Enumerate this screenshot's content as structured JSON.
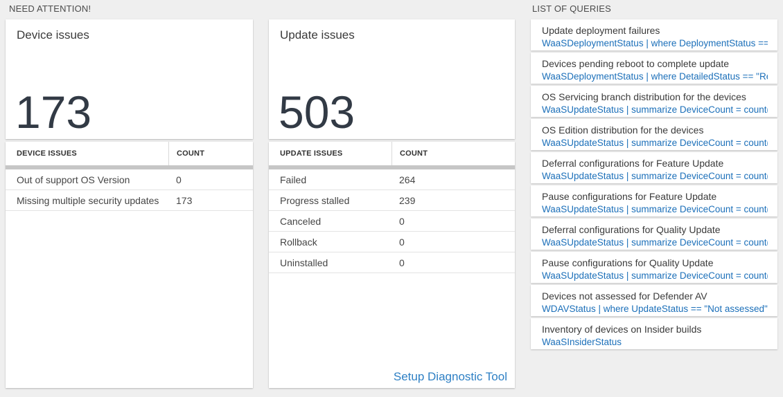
{
  "sections": {
    "need_attention": "NEED ATTENTION!",
    "list_of_queries": "LIST OF QUERIES"
  },
  "device_card": {
    "title": "Device issues",
    "big_number": "173",
    "table": {
      "headers": [
        "DEVICE ISSUES",
        "COUNT"
      ],
      "rows": [
        {
          "label": "Out of support OS Version",
          "count": "0"
        },
        {
          "label": "Missing multiple security updates",
          "count": "173"
        }
      ]
    }
  },
  "update_card": {
    "title": "Update issues",
    "big_number": "503",
    "table": {
      "headers": [
        "UPDATE ISSUES",
        "COUNT"
      ],
      "rows": [
        {
          "label": "Failed",
          "count": "264"
        },
        {
          "label": "Progress stalled",
          "count": "239"
        },
        {
          "label": "Canceled",
          "count": "0"
        },
        {
          "label": "Rollback",
          "count": "0"
        },
        {
          "label": "Uninstalled",
          "count": "0"
        }
      ]
    },
    "link_label": "Setup Diagnostic Tool"
  },
  "queries": [
    {
      "title": "Update deployment failures",
      "query": "WaaSDeploymentStatus | where DeploymentStatus == \"Failed\" |..."
    },
    {
      "title": "Devices pending reboot to complete update",
      "query": "WaaSDeploymentStatus | where DetailedStatus == \"Reboot pend..."
    },
    {
      "title": "OS Servicing branch distribution for the devices",
      "query": "WaaSUpdateStatus | summarize DeviceCount = count() by OSSer..."
    },
    {
      "title": "OS Edition distribution for the devices",
      "query": "WaaSUpdateStatus | summarize DeviceCount = count() by OSEdit..."
    },
    {
      "title": "Deferral configurations for Feature Update",
      "query": "WaaSUpdateStatus | summarize DeviceCount = count() by Featur..."
    },
    {
      "title": "Pause configurations for Feature Update",
      "query": "WaaSUpdateStatus | summarize DeviceCount = count() by Featur..."
    },
    {
      "title": "Deferral configurations for Quality Update",
      "query": "WaaSUpdateStatus | summarize DeviceCount = count() by Qualit..."
    },
    {
      "title": "Pause configurations for Quality Update",
      "query": "WaaSUpdateStatus | summarize DeviceCount = count() by Qualit..."
    },
    {
      "title": "Devices not assessed for Defender AV",
      "query": "WDAVStatus | where UpdateStatus == \"Not assessed\" | render ta..."
    },
    {
      "title": "Inventory of devices on Insider builds",
      "query": "WaaSInsiderStatus"
    }
  ],
  "colors": {
    "page_bg": "#efefef",
    "tile_bg": "#ffffff",
    "big_number": "#323a45",
    "query_blue": "#1b6fb9",
    "link_blue": "#2d7fc4",
    "scrollbar": "#c6c6c6"
  }
}
